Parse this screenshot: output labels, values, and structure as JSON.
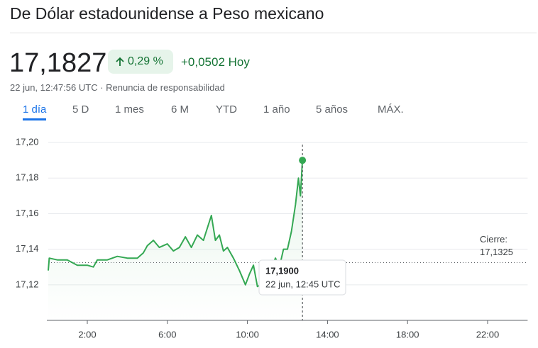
{
  "header": {
    "title": "De Dólar estadounidense a Peso mexicano",
    "price": "17,1827",
    "change_pct": "0,29 %",
    "change_abs": "+0,0502 Hoy",
    "timestamp": "22 jun, 12:47:56 UTC",
    "disclaimer": "Renuncia de responsabilidad"
  },
  "tabs": {
    "items": [
      "1 día",
      "5 D",
      "1 mes",
      "6 M",
      "YTD",
      "1 año",
      "5 años",
      "MÁX."
    ],
    "selected": 0
  },
  "chart_data": {
    "type": "line",
    "color": "#34a853",
    "x": [
      0.05,
      0.1,
      0.5,
      1,
      1.5,
      2,
      2.3,
      2.5,
      3,
      3.5,
      4,
      4.5,
      4.8,
      5,
      5.3,
      5.6,
      6,
      6.3,
      6.6,
      6.9,
      7.2,
      7.5,
      7.8,
      8,
      8.2,
      8.4,
      8.6,
      8.8,
      9,
      9.3,
      9.6,
      9.9,
      10.1,
      10.3,
      10.5,
      10.8,
      11,
      11.2,
      11.4,
      11.6,
      11.8,
      12,
      12.2,
      12.4,
      12.55,
      12.65,
      12.75
    ],
    "values": [
      17.128,
      17.135,
      17.134,
      17.134,
      17.131,
      17.131,
      17.13,
      17.134,
      17.134,
      17.136,
      17.135,
      17.135,
      17.138,
      17.142,
      17.145,
      17.141,
      17.143,
      17.139,
      17.141,
      17.147,
      17.141,
      17.148,
      17.145,
      17.152,
      17.159,
      17.145,
      17.148,
      17.139,
      17.141,
      17.135,
      17.128,
      17.12,
      17.126,
      17.131,
      17.119,
      17.121,
      17.124,
      17.13,
      17.135,
      17.13,
      17.14,
      17.14,
      17.15,
      17.165,
      17.18,
      17.17,
      17.19
    ],
    "xlim": [
      0,
      24
    ],
    "ylim": [
      17.1,
      17.21
    ],
    "xticks": [
      {
        "value": 2,
        "label": "2:00"
      },
      {
        "value": 6,
        "label": "6:00"
      },
      {
        "value": 10,
        "label": "10:00"
      },
      {
        "value": 14,
        "label": "14:00"
      },
      {
        "value": 18,
        "label": "18:00"
      },
      {
        "value": 22,
        "label": "22:00"
      }
    ],
    "yticks": [
      {
        "value": 17.12,
        "label": "17,12"
      },
      {
        "value": 17.14,
        "label": "17,14"
      },
      {
        "value": 17.16,
        "label": "17,16"
      },
      {
        "value": 17.18,
        "label": "17,18"
      },
      {
        "value": 17.2,
        "label": "17,20"
      }
    ],
    "grid": true,
    "previous_close": {
      "label": "Cierre:",
      "value": 17.1325,
      "value_label": "17,1325"
    },
    "tooltip": {
      "x": 12.75,
      "value": 17.19,
      "value_label": "17,1900",
      "time_label": "22 jun, 12:45 UTC"
    }
  }
}
